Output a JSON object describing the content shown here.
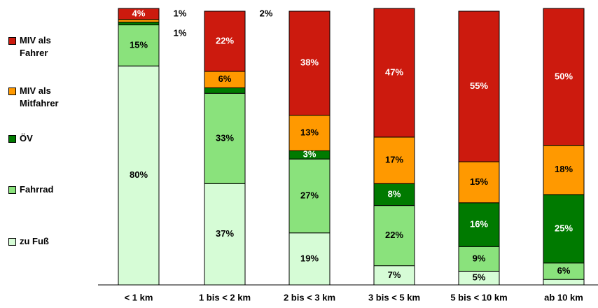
{
  "chart_data": {
    "type": "stacked_bar",
    "categories": [
      "< 1 km",
      "1 bis < 2 km",
      "2 bis < 3 km",
      "3 bis < 5 km",
      "5 bis < 10 km",
      "ab 10 km"
    ],
    "ylim": [
      0,
      100
    ],
    "series": [
      {
        "name": "zu Fuß",
        "color": "#d6fcd6",
        "values": [
          80,
          37,
          19,
          7,
          5,
          2
        ],
        "value_labels": [
          "80%",
          "37%",
          "19%",
          "7%",
          "5%",
          "2%"
        ]
      },
      {
        "name": "Fahrrad",
        "color": "#8ae27c",
        "values": [
          15,
          33,
          27,
          22,
          9,
          6
        ],
        "value_labels": [
          "15%",
          "33%",
          "27%",
          "22%",
          "9%",
          "6%"
        ]
      },
      {
        "name": "ÖV",
        "color": "#007a00",
        "values": [
          1,
          2,
          3,
          8,
          16,
          25
        ],
        "value_labels": [
          "1%",
          "2%",
          "3%",
          "8%",
          "16%",
          "25%"
        ]
      },
      {
        "name": "MIV als Mitfahrer",
        "color": "#ff9900",
        "values": [
          1,
          6,
          13,
          17,
          15,
          18
        ],
        "value_labels": [
          "1%",
          "6%",
          "13%",
          "17%",
          "15%",
          "18%"
        ]
      },
      {
        "name": "MIV als Fahrer",
        "color": "#cc1a0e",
        "values": [
          4,
          22,
          38,
          47,
          55,
          50
        ],
        "value_labels": [
          "4%",
          "22%",
          "38%",
          "47%",
          "55%",
          "50%"
        ]
      }
    ]
  }
}
